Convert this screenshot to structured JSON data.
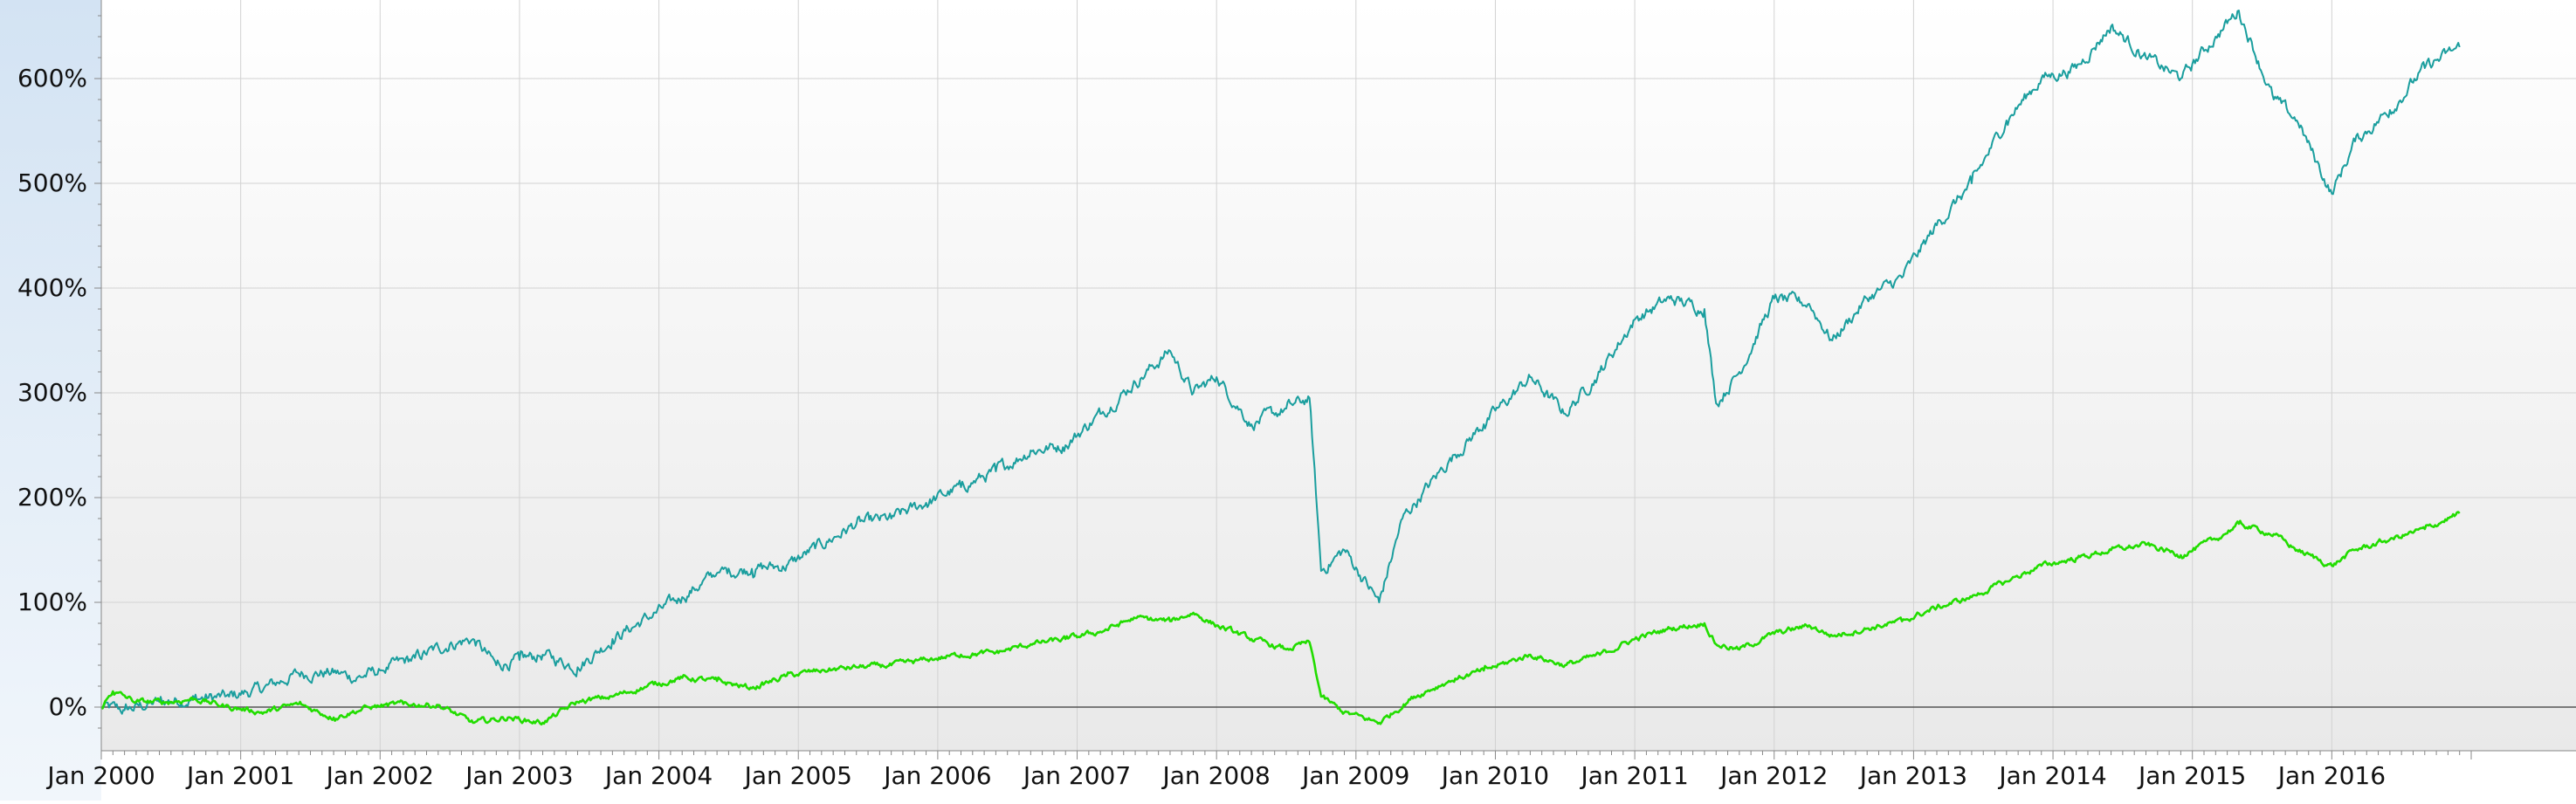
{
  "chart_data": {
    "type": "line",
    "title": "",
    "xlabel": "",
    "ylabel": "",
    "ylim": [
      -40,
      670
    ],
    "grid": true,
    "legend": "none",
    "x_ticks": [
      "Jan 2000",
      "Jan 2001",
      "Jan 2002",
      "Jan 2003",
      "Jan 2004",
      "Jan 2005",
      "Jan 2006",
      "Jan 2007",
      "Jan 2008",
      "Jan 2009",
      "Jan 2010",
      "Jan 2011",
      "Jan 2012",
      "Jan 2013",
      "Jan 2014",
      "Jan 2015",
      "Jan 2016"
    ],
    "y_ticks": [
      "0%",
      "100%",
      "200%",
      "300%",
      "400%",
      "500%",
      "600%"
    ],
    "y_tick_values": [
      0,
      100,
      200,
      300,
      400,
      500,
      600
    ],
    "series": [
      {
        "color": "#1a9e9e",
        "points": [
          [
            "2000-01",
            0
          ],
          [
            "2000-03",
            -3
          ],
          [
            "2000-06",
            5
          ],
          [
            "2000-09",
            8
          ],
          [
            "2000-12",
            10
          ],
          [
            "2001-03",
            18
          ],
          [
            "2001-06",
            32
          ],
          [
            "2001-09",
            33
          ],
          [
            "2001-11",
            28
          ],
          [
            "2002-01",
            35
          ],
          [
            "2002-04",
            47
          ],
          [
            "2002-07",
            60
          ],
          [
            "2002-09",
            65
          ],
          [
            "2002-11",
            40
          ],
          [
            "2003-01",
            45
          ],
          [
            "2003-03",
            50
          ],
          [
            "2003-06",
            38
          ],
          [
            "2003-09",
            65
          ],
          [
            "2003-12",
            85
          ],
          [
            "2004-03",
            105
          ],
          [
            "2004-06",
            128
          ],
          [
            "2004-09",
            132
          ],
          [
            "2004-12",
            135
          ],
          [
            "2005-03",
            155
          ],
          [
            "2005-06",
            175
          ],
          [
            "2005-09",
            180
          ],
          [
            "2005-12",
            195
          ],
          [
            "2006-03",
            210
          ],
          [
            "2006-06",
            225
          ],
          [
            "2006-09",
            245
          ],
          [
            "2006-12",
            250
          ],
          [
            "2007-03",
            280
          ],
          [
            "2007-06",
            310
          ],
          [
            "2007-09",
            340
          ],
          [
            "2007-11",
            300
          ],
          [
            "2008-01",
            315
          ],
          [
            "2008-04",
            270
          ],
          [
            "2008-07",
            285
          ],
          [
            "2008-09",
            295
          ],
          [
            "2008-10",
            130
          ],
          [
            "2008-12",
            150
          ],
          [
            "2009-03",
            100
          ],
          [
            "2009-05",
            180
          ],
          [
            "2009-09",
            235
          ],
          [
            "2009-12",
            270
          ],
          [
            "2010-04",
            315
          ],
          [
            "2010-07",
            280
          ],
          [
            "2010-10",
            320
          ],
          [
            "2011-01",
            370
          ],
          [
            "2011-04",
            390
          ],
          [
            "2011-07",
            380
          ],
          [
            "2011-08",
            290
          ],
          [
            "2011-10",
            320
          ],
          [
            "2012-01",
            390
          ],
          [
            "2012-04",
            385
          ],
          [
            "2012-06",
            350
          ],
          [
            "2012-09",
            390
          ],
          [
            "2012-12",
            410
          ],
          [
            "2013-03",
            460
          ],
          [
            "2013-06",
            500
          ],
          [
            "2013-09",
            560
          ],
          [
            "2013-12",
            600
          ],
          [
            "2014-03",
            610
          ],
          [
            "2014-06",
            650
          ],
          [
            "2014-09",
            620
          ],
          [
            "2014-12",
            600
          ],
          [
            "2015-03",
            640
          ],
          [
            "2015-05",
            665
          ],
          [
            "2015-08",
            580
          ],
          [
            "2015-10",
            560
          ],
          [
            "2016-01",
            490
          ],
          [
            "2016-03",
            540
          ],
          [
            "2016-06",
            570
          ],
          [
            "2016-09",
            610
          ],
          [
            "2016-12",
            630
          ]
        ]
      },
      {
        "color": "#22dd00",
        "points": [
          [
            "2000-01",
            0
          ],
          [
            "2000-02",
            15
          ],
          [
            "2000-04",
            5
          ],
          [
            "2000-07",
            5
          ],
          [
            "2000-09",
            8
          ],
          [
            "2000-12",
            0
          ],
          [
            "2001-03",
            -5
          ],
          [
            "2001-06",
            3
          ],
          [
            "2001-09",
            -10
          ],
          [
            "2001-12",
            0
          ],
          [
            "2002-03",
            3
          ],
          [
            "2002-06",
            2
          ],
          [
            "2002-09",
            -15
          ],
          [
            "2002-12",
            -10
          ],
          [
            "2003-03",
            -15
          ],
          [
            "2003-06",
            5
          ],
          [
            "2003-09",
            10
          ],
          [
            "2003-12",
            20
          ],
          [
            "2004-03",
            28
          ],
          [
            "2004-06",
            25
          ],
          [
            "2004-09",
            18
          ],
          [
            "2004-12",
            30
          ],
          [
            "2005-03",
            35
          ],
          [
            "2005-06",
            38
          ],
          [
            "2005-09",
            40
          ],
          [
            "2005-12",
            45
          ],
          [
            "2006-03",
            50
          ],
          [
            "2006-06",
            52
          ],
          [
            "2006-09",
            60
          ],
          [
            "2006-12",
            65
          ],
          [
            "2007-03",
            72
          ],
          [
            "2007-06",
            85
          ],
          [
            "2007-09",
            82
          ],
          [
            "2007-11",
            90
          ],
          [
            "2008-01",
            78
          ],
          [
            "2008-04",
            65
          ],
          [
            "2008-07",
            55
          ],
          [
            "2008-09",
            62
          ],
          [
            "2008-10",
            10
          ],
          [
            "2008-12",
            -5
          ],
          [
            "2009-03",
            -15
          ],
          [
            "2009-06",
            10
          ],
          [
            "2009-09",
            25
          ],
          [
            "2009-12",
            35
          ],
          [
            "2010-04",
            50
          ],
          [
            "2010-07",
            40
          ],
          [
            "2010-10",
            50
          ],
          [
            "2011-01",
            65
          ],
          [
            "2011-04",
            75
          ],
          [
            "2011-07",
            80
          ],
          [
            "2011-08",
            60
          ],
          [
            "2011-10",
            55
          ],
          [
            "2012-01",
            70
          ],
          [
            "2012-04",
            78
          ],
          [
            "2012-06",
            68
          ],
          [
            "2012-09",
            75
          ],
          [
            "2012-12",
            82
          ],
          [
            "2013-03",
            95
          ],
          [
            "2013-06",
            105
          ],
          [
            "2013-09",
            120
          ],
          [
            "2013-12",
            135
          ],
          [
            "2014-03",
            142
          ],
          [
            "2014-06",
            150
          ],
          [
            "2014-09",
            155
          ],
          [
            "2014-12",
            145
          ],
          [
            "2015-03",
            160
          ],
          [
            "2015-05",
            175
          ],
          [
            "2015-08",
            165
          ],
          [
            "2015-10",
            150
          ],
          [
            "2016-01",
            135
          ],
          [
            "2016-03",
            150
          ],
          [
            "2016-06",
            160
          ],
          [
            "2016-09",
            170
          ],
          [
            "2016-12",
            185
          ]
        ]
      }
    ]
  }
}
